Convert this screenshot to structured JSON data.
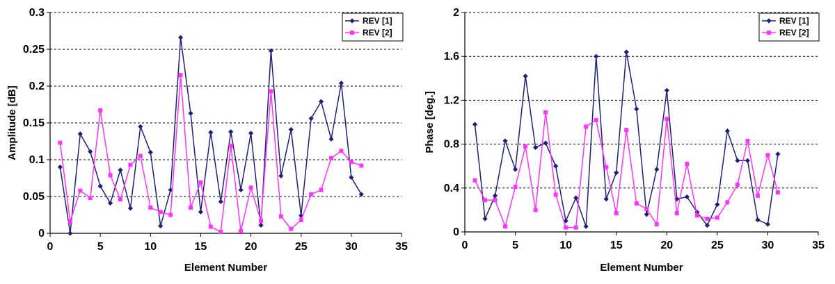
{
  "chart_data": [
    {
      "type": "line",
      "title": "",
      "xlabel": "Element Number",
      "ylabel": "Amplitude [dB]",
      "xlim": [
        0,
        35
      ],
      "ylim": [
        0,
        0.3
      ],
      "xticks": [
        0,
        5,
        10,
        15,
        20,
        25,
        30,
        35
      ],
      "yticks": [
        0,
        0.05,
        0.1,
        0.15,
        0.2,
        0.25,
        0.3
      ],
      "xtick_labels": [
        "0",
        "5",
        "10",
        "15",
        "20",
        "25",
        "30",
        "35"
      ],
      "ytick_labels": [
        "0",
        "0.05",
        "0.1",
        "0.15",
        "0.2",
        "0.25",
        "0.3"
      ],
      "grid": "horizontal dashed",
      "legend_position": "top-right",
      "x": [
        1,
        2,
        3,
        4,
        5,
        6,
        7,
        8,
        9,
        10,
        11,
        12,
        13,
        14,
        15,
        16,
        17,
        18,
        19,
        20,
        21,
        22,
        23,
        24,
        25,
        26,
        27,
        28,
        29,
        30,
        31
      ],
      "series": [
        {
          "name": "REV [1]",
          "color": "#1f1f7a",
          "marker": "diamond",
          "values": [
            0.09,
            0.0,
            0.135,
            0.111,
            0.064,
            0.041,
            0.086,
            0.034,
            0.145,
            0.11,
            0.01,
            0.059,
            0.266,
            0.163,
            0.029,
            0.137,
            0.043,
            0.138,
            0.059,
            0.136,
            0.011,
            0.248,
            0.078,
            0.141,
            0.024,
            0.156,
            0.179,
            0.128,
            0.204,
            0.076,
            0.053
          ]
        },
        {
          "name": "REV [2]",
          "color": "#ff33ff",
          "marker": "square",
          "values": [
            0.123,
            0.016,
            0.058,
            0.048,
            0.167,
            0.079,
            0.046,
            0.093,
            0.105,
            0.035,
            0.029,
            0.025,
            0.215,
            0.035,
            0.069,
            0.009,
            0.002,
            0.119,
            0.003,
            0.062,
            0.017,
            0.193,
            0.023,
            0.006,
            0.018,
            0.053,
            0.059,
            0.102,
            0.112,
            0.097,
            0.092
          ]
        }
      ]
    },
    {
      "type": "line",
      "title": "",
      "xlabel": "Element Number",
      "ylabel": "Phase [deg.]",
      "xlim": [
        0,
        35
      ],
      "ylim": [
        0,
        2
      ],
      "xticks": [
        0,
        5,
        10,
        15,
        20,
        25,
        30,
        35
      ],
      "yticks": [
        0,
        0.4,
        0.8,
        1.2,
        1.6,
        2.0
      ],
      "xtick_labels": [
        "0",
        "5",
        "10",
        "15",
        "20",
        "25",
        "30",
        "35"
      ],
      "ytick_labels": [
        "0",
        "0.4",
        "0.8",
        "1.2",
        "1.6",
        "2"
      ],
      "grid": "horizontal dashed",
      "legend_position": "top-right",
      "x": [
        1,
        2,
        3,
        4,
        5,
        6,
        7,
        8,
        9,
        10,
        11,
        12,
        13,
        14,
        15,
        16,
        17,
        18,
        19,
        20,
        21,
        22,
        23,
        24,
        25,
        26,
        27,
        28,
        29,
        30,
        31
      ],
      "series": [
        {
          "name": "REV [1]",
          "color": "#1f1f7a",
          "marker": "diamond",
          "values": [
            0.98,
            0.12,
            0.33,
            0.83,
            0.57,
            1.42,
            0.77,
            0.81,
            0.6,
            0.1,
            0.31,
            0.05,
            1.6,
            0.3,
            0.54,
            1.64,
            1.12,
            0.16,
            0.57,
            1.29,
            0.3,
            0.32,
            0.18,
            0.06,
            0.25,
            0.92,
            0.65,
            0.65,
            0.11,
            0.07,
            0.71
          ]
        },
        {
          "name": "REV [2]",
          "color": "#ff33ff",
          "marker": "square",
          "values": [
            0.47,
            0.29,
            0.29,
            0.05,
            0.41,
            0.78,
            0.2,
            1.09,
            0.34,
            0.04,
            0.04,
            0.96,
            1.02,
            0.59,
            0.17,
            0.93,
            0.26,
            0.21,
            0.07,
            1.03,
            0.17,
            0.62,
            0.15,
            0.12,
            0.13,
            0.27,
            0.43,
            0.83,
            0.33,
            0.7,
            0.36
          ]
        }
      ]
    }
  ]
}
